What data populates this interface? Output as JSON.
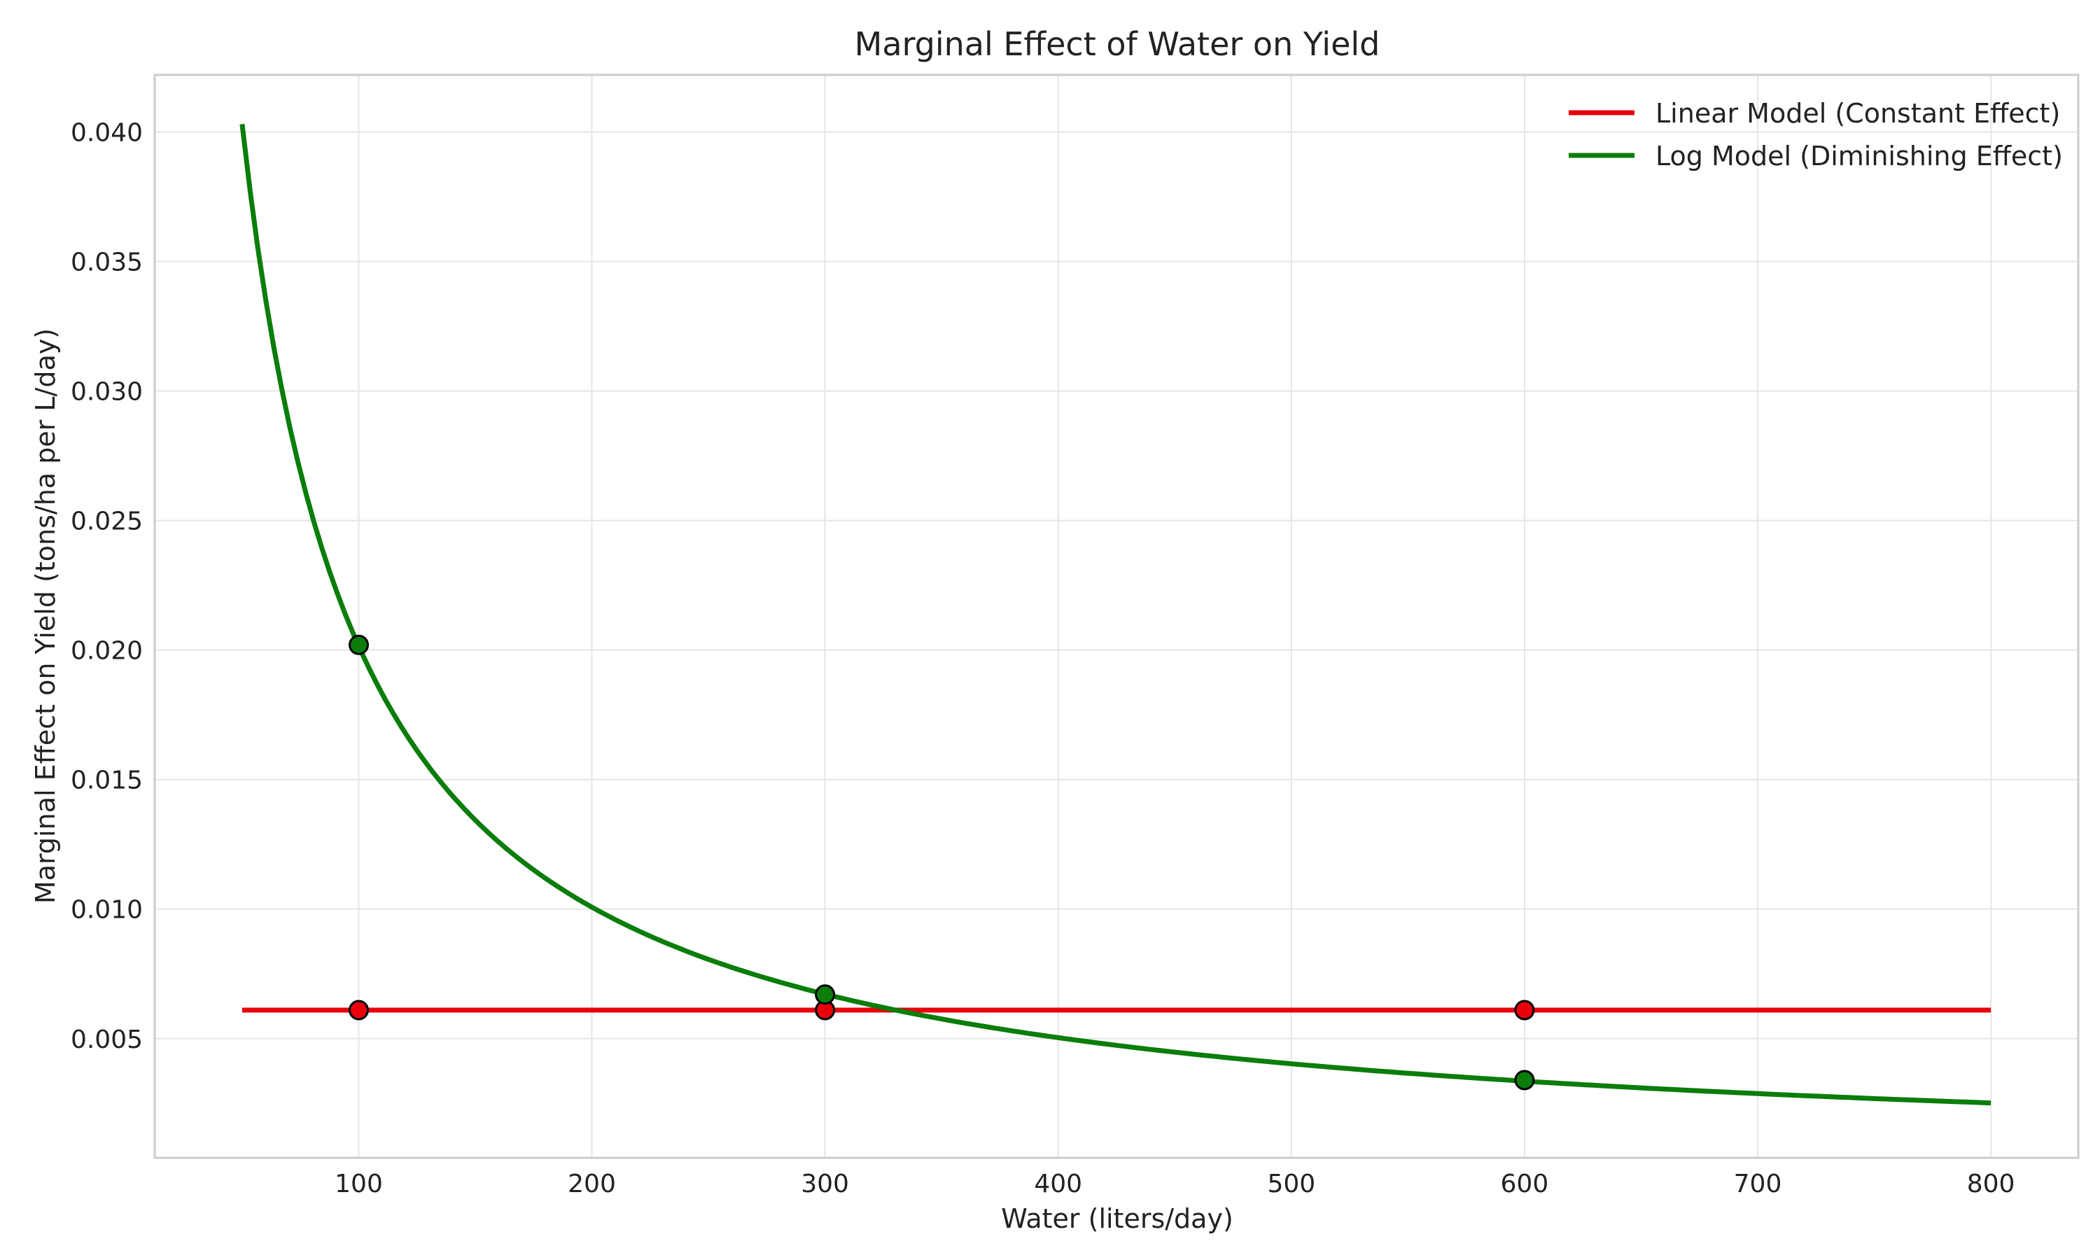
{
  "chart_data": {
    "type": "line",
    "title": "Marginal Effect of Water on Yield",
    "xlabel": "Water (liters/day)",
    "ylabel": "Marginal Effect on Yield (tons/ha per L/day)",
    "xlim": [
      12.5,
      837.5
    ],
    "ylim": [
      0.0004,
      0.0422
    ],
    "xticks": [
      100,
      200,
      300,
      400,
      500,
      600,
      700,
      800
    ],
    "yticks": [
      0.005,
      0.01,
      0.015,
      0.02,
      0.025,
      0.03,
      0.035,
      0.04
    ],
    "grid": true,
    "legend_position": "top-right",
    "series": [
      {
        "name": "Linear Model (Constant Effect)",
        "color": "#e8000b",
        "kind": "constant",
        "x_range": [
          50,
          800
        ],
        "y_value": 0.0061,
        "highlight_points": [
          {
            "x": 100,
            "y": 0.0061
          },
          {
            "x": 300,
            "y": 0.0061
          },
          {
            "x": 600,
            "y": 0.0061
          }
        ]
      },
      {
        "name": "Log Model (Diminishing Effect)",
        "color": "#0a7d0a",
        "kind": "reciprocal",
        "coefficient": 2.015,
        "x_range": [
          50,
          800
        ],
        "highlight_points": [
          {
            "x": 100,
            "y": 0.0202
          },
          {
            "x": 300,
            "y": 0.0067
          },
          {
            "x": 600,
            "y": 0.0034
          }
        ]
      }
    ]
  }
}
